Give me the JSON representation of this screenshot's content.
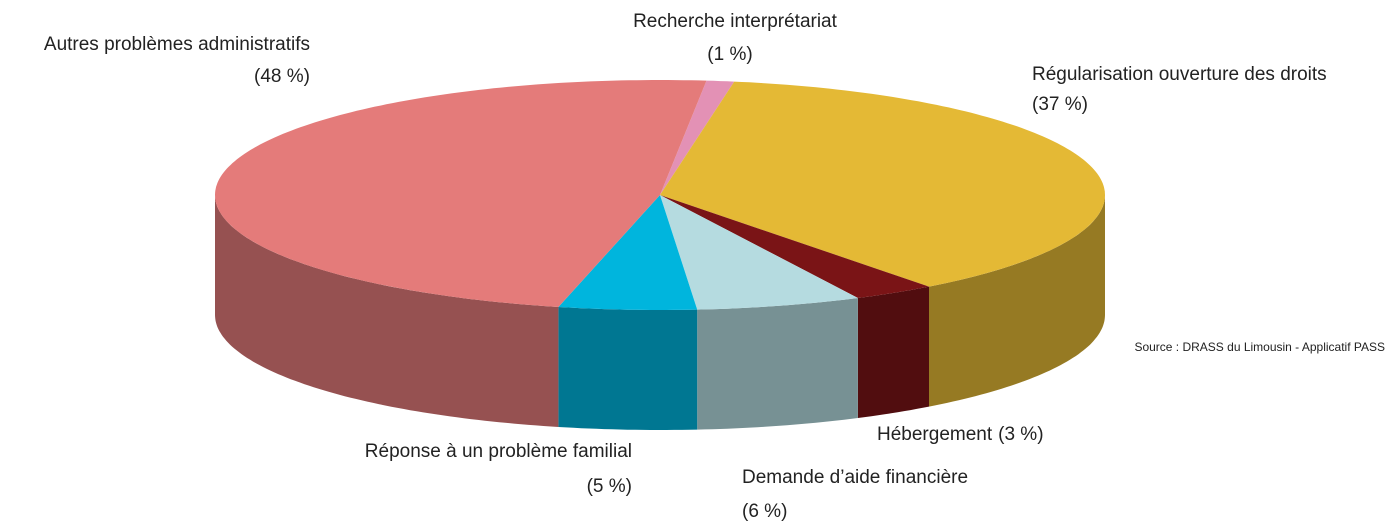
{
  "chart_data": {
    "type": "pie3d",
    "categories": [
      "Recherche interprétariat",
      "Régularisation ouverture des droits",
      "Hébergement",
      "Demande d’aide financière",
      "Réponse à un problème familial",
      "Autres problèmes administratifs"
    ],
    "values": [
      1,
      37,
      3,
      6,
      5,
      48
    ],
    "value_labels": [
      "(1 %)",
      "(37 %)",
      "(3 %)",
      "(6 %)",
      "(5 %)",
      "(48 %)"
    ],
    "colors": [
      "#e391b5",
      "#e4b935",
      "#7a1416",
      "#b5dbe0",
      "#00b5dd",
      "#e47b7a"
    ],
    "source": "Source : DRASS du Limousin - Applicatif PASS"
  }
}
